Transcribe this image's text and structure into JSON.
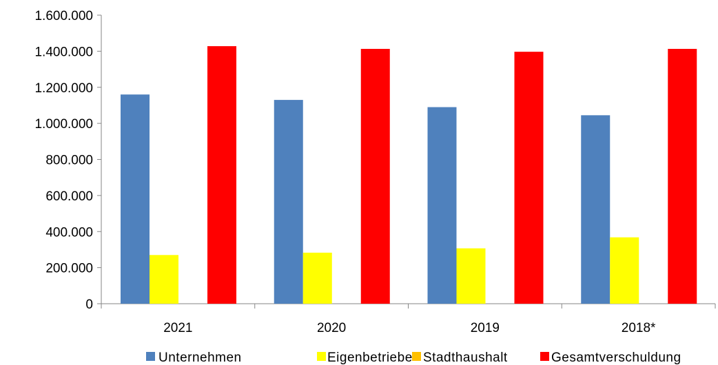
{
  "chart_data": {
    "type": "bar",
    "categories": [
      "2021",
      "2020",
      "2019",
      "2018*"
    ],
    "series": [
      {
        "name": "Unternehmen",
        "color": "#4f81bd",
        "values": [
          1160000,
          1130000,
          1090000,
          1045000
        ]
      },
      {
        "name": "Eigenbetriebe",
        "color": "#ffff00",
        "values": [
          270000,
          283000,
          307000,
          368000
        ]
      },
      {
        "name": "Stadthaushalt",
        "color": "#ffc000",
        "values": [
          0,
          0,
          0,
          0
        ]
      },
      {
        "name": "Gesamtverschuldung",
        "color": "#ff0000",
        "values": [
          1428000,
          1413000,
          1397000,
          1413000
        ]
      }
    ],
    "ylim": [
      0,
      1600000
    ],
    "yticks": [
      {
        "value": 0,
        "label": "0"
      },
      {
        "value": 200000,
        "label": "200.000"
      },
      {
        "value": 400000,
        "label": "400.000"
      },
      {
        "value": 600000,
        "label": "600.000"
      },
      {
        "value": 800000,
        "label": "800.000"
      },
      {
        "value": 1000000,
        "label": "1.000.000"
      },
      {
        "value": 1200000,
        "label": "1.200.000"
      },
      {
        "value": 1400000,
        "label": "1.400.000"
      },
      {
        "value": 1600000,
        "label": "1.600.000"
      }
    ],
    "grid": false,
    "legend": "bottom"
  }
}
